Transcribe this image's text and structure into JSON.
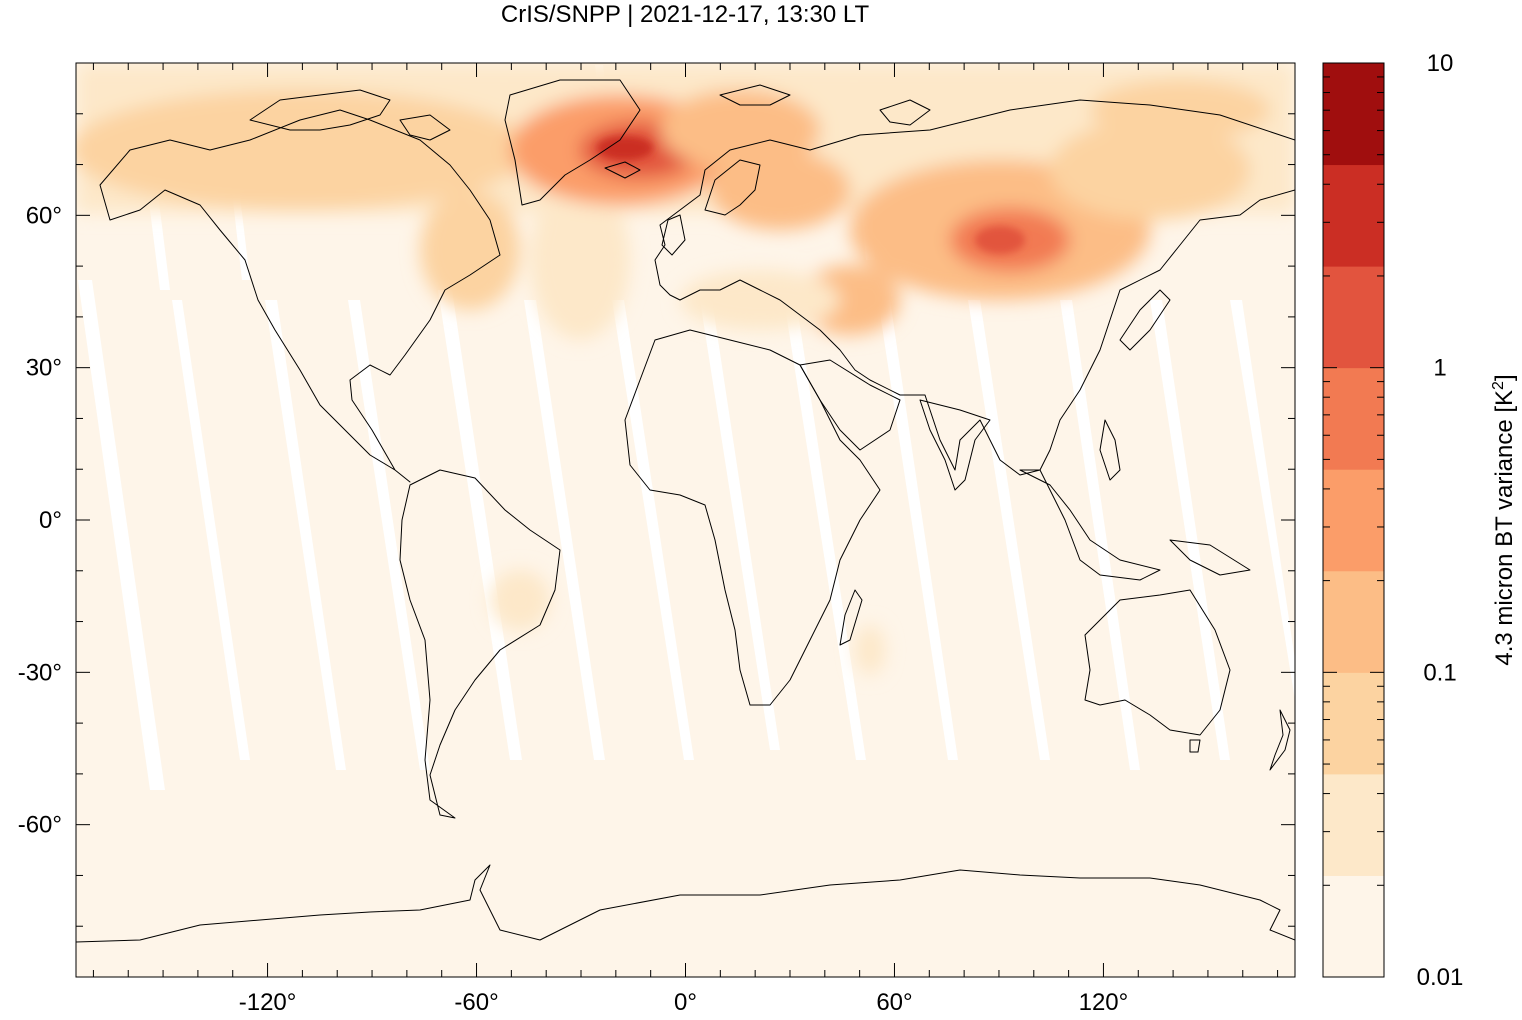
{
  "title": "CrIS/SNPP | 2021-12-17, 13:30 LT",
  "map": {
    "projection": "equirectangular",
    "lon_range": [
      -175,
      175
    ],
    "lat_range": [
      -90,
      90
    ],
    "x_ticks": [
      {
        "value": -120,
        "label": "-120°"
      },
      {
        "value": -60,
        "label": "-60°"
      },
      {
        "value": 0,
        "label": "0°"
      },
      {
        "value": 60,
        "label": "60°"
      },
      {
        "value": 120,
        "label": "120°"
      }
    ],
    "y_ticks": [
      {
        "value": 60,
        "label": "60°"
      },
      {
        "value": 30,
        "label": "30°"
      },
      {
        "value": 0,
        "label": "0°"
      },
      {
        "value": -30,
        "label": "-30°"
      },
      {
        "value": -60,
        "label": "-60°"
      }
    ],
    "background_color": "#fef5e9"
  },
  "colorbar": {
    "label": "4.3 micron BT variance [K",
    "label_superscript": "2",
    "label_suffix": "]",
    "scale": "log",
    "range": [
      0.01,
      10
    ],
    "tick_labels": [
      {
        "value": 10,
        "label": "10"
      },
      {
        "value": 1,
        "label": "1"
      },
      {
        "value": 0.1,
        "label": "0.1"
      },
      {
        "value": 0.01,
        "label": "0.01"
      }
    ],
    "colors": [
      "#fef5e9",
      "#fde8c9",
      "#fcd3a1",
      "#fcbd86",
      "#fb9d69",
      "#f27a52",
      "#e2543e",
      "#cb2e24",
      "#a00e0e"
    ]
  }
}
